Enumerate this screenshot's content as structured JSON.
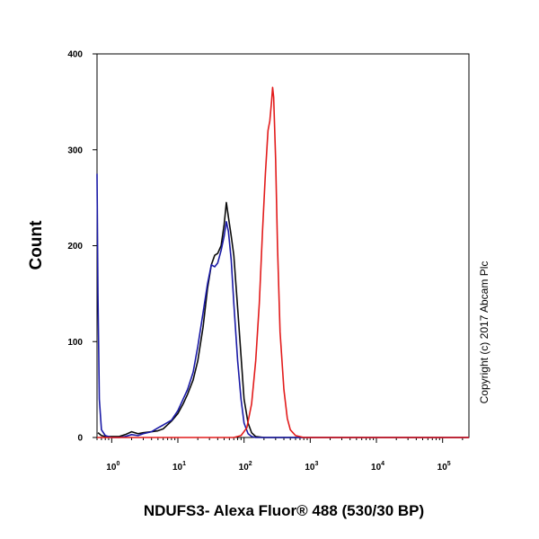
{
  "chart_data": {
    "type": "line",
    "xlabel": "NDUFS3- Alexa Fluor® 488 (530/30 BP)",
    "ylabel": "Count",
    "x_scale": "log",
    "xlim": [
      0.6,
      250000
    ],
    "ylim": [
      0,
      400
    ],
    "y_ticks": [
      0,
      100,
      200,
      300,
      400
    ],
    "x_ticks": [
      {
        "value": 1,
        "base": "10",
        "exp": "0"
      },
      {
        "value": 10,
        "base": "10",
        "exp": "1"
      },
      {
        "value": 100,
        "base": "10",
        "exp": "2"
      },
      {
        "value": 1000,
        "base": "10",
        "exp": "3"
      },
      {
        "value": 10000,
        "base": "10",
        "exp": "4"
      },
      {
        "value": 100000,
        "base": "10",
        "exp": "5"
      }
    ],
    "grid": false,
    "series": [
      {
        "color": "#0b0b0b",
        "points": [
          [
            0.62,
            5
          ],
          [
            0.7,
            2
          ],
          [
            0.8,
            1
          ],
          [
            1,
            1
          ],
          [
            1.3,
            1
          ],
          [
            1.6,
            3
          ],
          [
            2,
            6
          ],
          [
            2.5,
            4
          ],
          [
            3,
            5
          ],
          [
            4,
            6
          ],
          [
            5,
            7
          ],
          [
            6,
            9
          ],
          [
            8,
            17
          ],
          [
            10,
            25
          ],
          [
            12,
            35
          ],
          [
            14,
            45
          ],
          [
            17,
            60
          ],
          [
            20,
            80
          ],
          [
            24,
            115
          ],
          [
            28,
            155
          ],
          [
            32,
            180
          ],
          [
            36,
            190
          ],
          [
            40,
            192
          ],
          [
            45,
            200
          ],
          [
            50,
            222
          ],
          [
            54,
            245
          ],
          [
            58,
            230
          ],
          [
            64,
            210
          ],
          [
            70,
            190
          ],
          [
            80,
            135
          ],
          [
            90,
            85
          ],
          [
            100,
            40
          ],
          [
            115,
            15
          ],
          [
            130,
            5
          ],
          [
            150,
            1
          ],
          [
            200,
            0
          ],
          [
            300,
            0
          ],
          [
            1000,
            0
          ],
          [
            10000,
            0
          ],
          [
            100000,
            0
          ],
          [
            250000,
            0
          ]
        ]
      },
      {
        "color": "#1a1aa6",
        "points": [
          [
            0.6,
            275
          ],
          [
            0.62,
            150
          ],
          [
            0.65,
            40
          ],
          [
            0.7,
            8
          ],
          [
            0.8,
            2
          ],
          [
            1,
            0
          ],
          [
            1.3,
            0
          ],
          [
            1.6,
            1
          ],
          [
            2,
            3
          ],
          [
            2.5,
            2
          ],
          [
            3,
            4
          ],
          [
            4,
            6
          ],
          [
            5,
            10
          ],
          [
            6,
            13
          ],
          [
            8,
            18
          ],
          [
            10,
            28
          ],
          [
            12,
            40
          ],
          [
            14,
            50
          ],
          [
            17,
            68
          ],
          [
            20,
            95
          ],
          [
            24,
            130
          ],
          [
            28,
            160
          ],
          [
            32,
            180
          ],
          [
            36,
            178
          ],
          [
            40,
            182
          ],
          [
            45,
            195
          ],
          [
            50,
            210
          ],
          [
            54,
            225
          ],
          [
            58,
            215
          ],
          [
            64,
            185
          ],
          [
            70,
            140
          ],
          [
            80,
            80
          ],
          [
            90,
            40
          ],
          [
            100,
            15
          ],
          [
            115,
            4
          ],
          [
            130,
            1
          ],
          [
            150,
            0
          ],
          [
            300,
            0
          ],
          [
            1000,
            0
          ],
          [
            10000,
            0
          ],
          [
            100000,
            0
          ],
          [
            250000,
            0
          ]
        ]
      },
      {
        "color": "#e21b1b",
        "points": [
          [
            0.6,
            0
          ],
          [
            1,
            0
          ],
          [
            10,
            0
          ],
          [
            70,
            0
          ],
          [
            90,
            2
          ],
          [
            110,
            10
          ],
          [
            130,
            35
          ],
          [
            150,
            80
          ],
          [
            170,
            140
          ],
          [
            190,
            215
          ],
          [
            210,
            275
          ],
          [
            230,
            320
          ],
          [
            245,
            330
          ],
          [
            260,
            350
          ],
          [
            270,
            365
          ],
          [
            280,
            355
          ],
          [
            300,
            290
          ],
          [
            320,
            200
          ],
          [
            350,
            110
          ],
          [
            400,
            50
          ],
          [
            450,
            20
          ],
          [
            500,
            8
          ],
          [
            600,
            2
          ],
          [
            800,
            0
          ],
          [
            1000,
            0
          ],
          [
            10000,
            0
          ],
          [
            100000,
            0
          ],
          [
            250000,
            0
          ]
        ]
      }
    ]
  },
  "copyright": "Copyright (c) 2017 Abcam Plc"
}
